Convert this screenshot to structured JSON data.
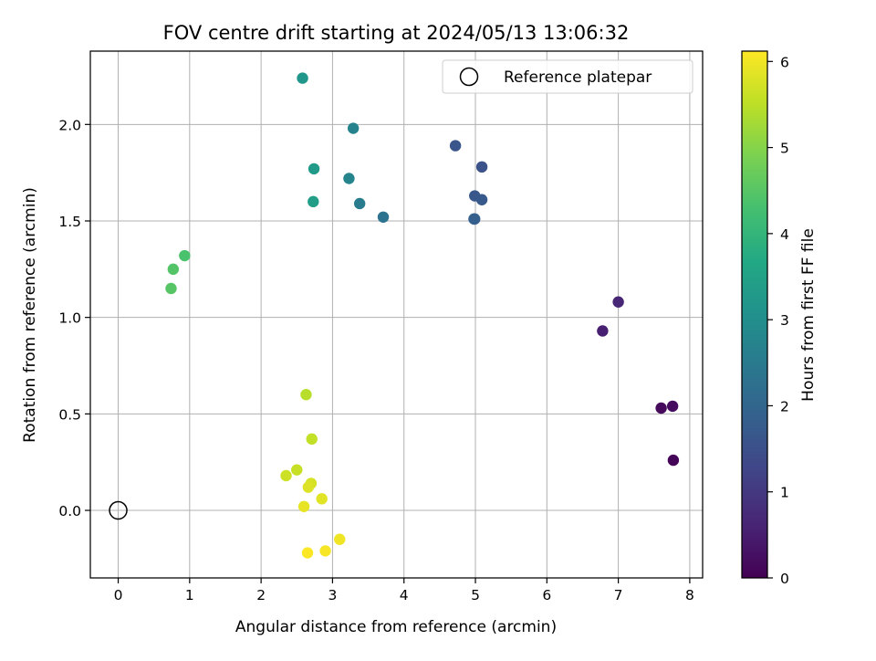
{
  "chart_data": {
    "type": "scatter",
    "title": "FOV centre drift starting at 2024/05/13 13:06:32",
    "xlabel": "Angular distance from reference (arcmin)",
    "ylabel": "Rotation from reference (arcmin)",
    "xlim": [
      -0.39,
      8.18
    ],
    "ylim": [
      -0.35,
      2.38
    ],
    "xticks": [
      0,
      1,
      2,
      3,
      4,
      5,
      6,
      7,
      8
    ],
    "yticks": [
      0.0,
      0.5,
      1.0,
      1.5,
      2.0
    ],
    "xtick_labels": [
      "0",
      "1",
      "2",
      "3",
      "4",
      "5",
      "6",
      "7",
      "8"
    ],
    "ytick_labels": [
      "0.0",
      "0.5",
      "1.0",
      "1.5",
      "2.0"
    ],
    "grid": true,
    "legend": {
      "placement": "top-right",
      "entries": [
        "Reference platepar"
      ]
    },
    "reference": {
      "x": 0,
      "y": 0
    },
    "colorbar": {
      "label": "Hours from first FF file",
      "colormap": "viridis",
      "range": [
        0,
        6.12
      ],
      "ticks": [
        0,
        1,
        2,
        3,
        4,
        5,
        6
      ],
      "tick_labels": [
        "0",
        "1",
        "2",
        "3",
        "4",
        "5",
        "6"
      ]
    },
    "points": [
      {
        "x": 7.77,
        "y": 0.26,
        "c": 0.05
      },
      {
        "x": 7.6,
        "y": 0.53,
        "c": 0.15
      },
      {
        "x": 7.76,
        "y": 0.54,
        "c": 0.2
      },
      {
        "x": 6.78,
        "y": 0.93,
        "c": 0.55
      },
      {
        "x": 7.0,
        "y": 1.08,
        "c": 0.65
      },
      {
        "x": 4.72,
        "y": 1.89,
        "c": 1.6
      },
      {
        "x": 5.09,
        "y": 1.78,
        "c": 1.55
      },
      {
        "x": 4.99,
        "y": 1.63,
        "c": 1.65
      },
      {
        "x": 5.09,
        "y": 1.61,
        "c": 1.7
      },
      {
        "x": 4.98,
        "y": 1.51,
        "c": 1.8
      },
      {
        "x": 4.99,
        "y": 1.51,
        "c": 1.85
      },
      {
        "x": 3.71,
        "y": 1.52,
        "c": 2.3
      },
      {
        "x": 3.38,
        "y": 1.59,
        "c": 2.55
      },
      {
        "x": 3.29,
        "y": 1.98,
        "c": 2.7
      },
      {
        "x": 3.23,
        "y": 1.72,
        "c": 2.75
      },
      {
        "x": 2.58,
        "y": 2.24,
        "c": 3.2
      },
      {
        "x": 2.74,
        "y": 1.77,
        "c": 3.3
      },
      {
        "x": 2.73,
        "y": 1.6,
        "c": 3.4
      },
      {
        "x": 0.93,
        "y": 1.32,
        "c": 4.35
      },
      {
        "x": 0.77,
        "y": 1.25,
        "c": 4.45
      },
      {
        "x": 0.74,
        "y": 1.15,
        "c": 4.5
      },
      {
        "x": 2.63,
        "y": 0.6,
        "c": 5.45
      },
      {
        "x": 2.71,
        "y": 0.37,
        "c": 5.55
      },
      {
        "x": 2.5,
        "y": 0.21,
        "c": 5.6
      },
      {
        "x": 2.35,
        "y": 0.18,
        "c": 5.65
      },
      {
        "x": 2.7,
        "y": 0.14,
        "c": 5.75
      },
      {
        "x": 2.66,
        "y": 0.12,
        "c": 5.8
      },
      {
        "x": 2.85,
        "y": 0.06,
        "c": 5.85
      },
      {
        "x": 2.6,
        "y": 0.02,
        "c": 5.9
      },
      {
        "x": 3.1,
        "y": -0.15,
        "c": 6.0
      },
      {
        "x": 2.9,
        "y": -0.21,
        "c": 6.05
      },
      {
        "x": 2.65,
        "y": -0.22,
        "c": 6.1
      }
    ]
  }
}
